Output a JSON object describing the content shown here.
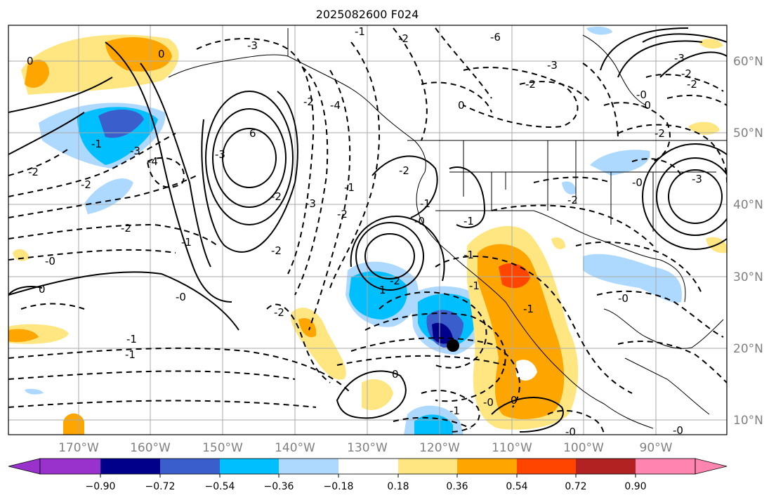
{
  "title": "2025082600 F024",
  "lon_labels": [
    "170°W",
    "160°W",
    "150°W",
    "140°W",
    "130°W",
    "120°W",
    "110°W",
    "100°W",
    "90°W"
  ],
  "lat_labels": [
    "60°N",
    "50°N",
    "40°N",
    "30°N",
    "20°N",
    "10°N"
  ],
  "colorbar": {
    "colors": [
      "#9932cc",
      "#00008b",
      "#3a5fcd",
      "#00bfff",
      "#add8ff",
      "#ffffff",
      "#ffe680",
      "#ffa500",
      "#ff4500",
      "#b22222",
      "#ff85b0"
    ],
    "tick_labels": [
      "−0.90",
      "−0.72",
      "−0.54",
      "−0.36",
      "−0.18",
      "0.18",
      "0.36",
      "0.54",
      "0.72",
      "0.90"
    ]
  },
  "contour_labels": [
    "-3",
    "-1",
    "-2",
    "-6",
    "-3",
    "-2",
    "-4",
    "-2",
    "0",
    "-3",
    "-2",
    "-2",
    "-0",
    "-2",
    "-2",
    "-3",
    "-2",
    "6",
    "-3",
    "-4",
    "-2",
    "-2",
    "-2",
    "-1",
    "-2",
    "-3",
    "-0",
    "0",
    "-1",
    "-2",
    "-0",
    "1",
    "-1",
    "-2",
    "-1",
    "-2",
    "-1",
    "-0",
    "0",
    "0",
    "-3",
    "-0",
    "-1",
    "-0",
    "-1",
    "-1",
    "0",
    "0",
    "-1",
    "-0",
    "-1",
    "-0",
    "-0",
    "-1",
    "-0",
    "-2"
  ]
}
